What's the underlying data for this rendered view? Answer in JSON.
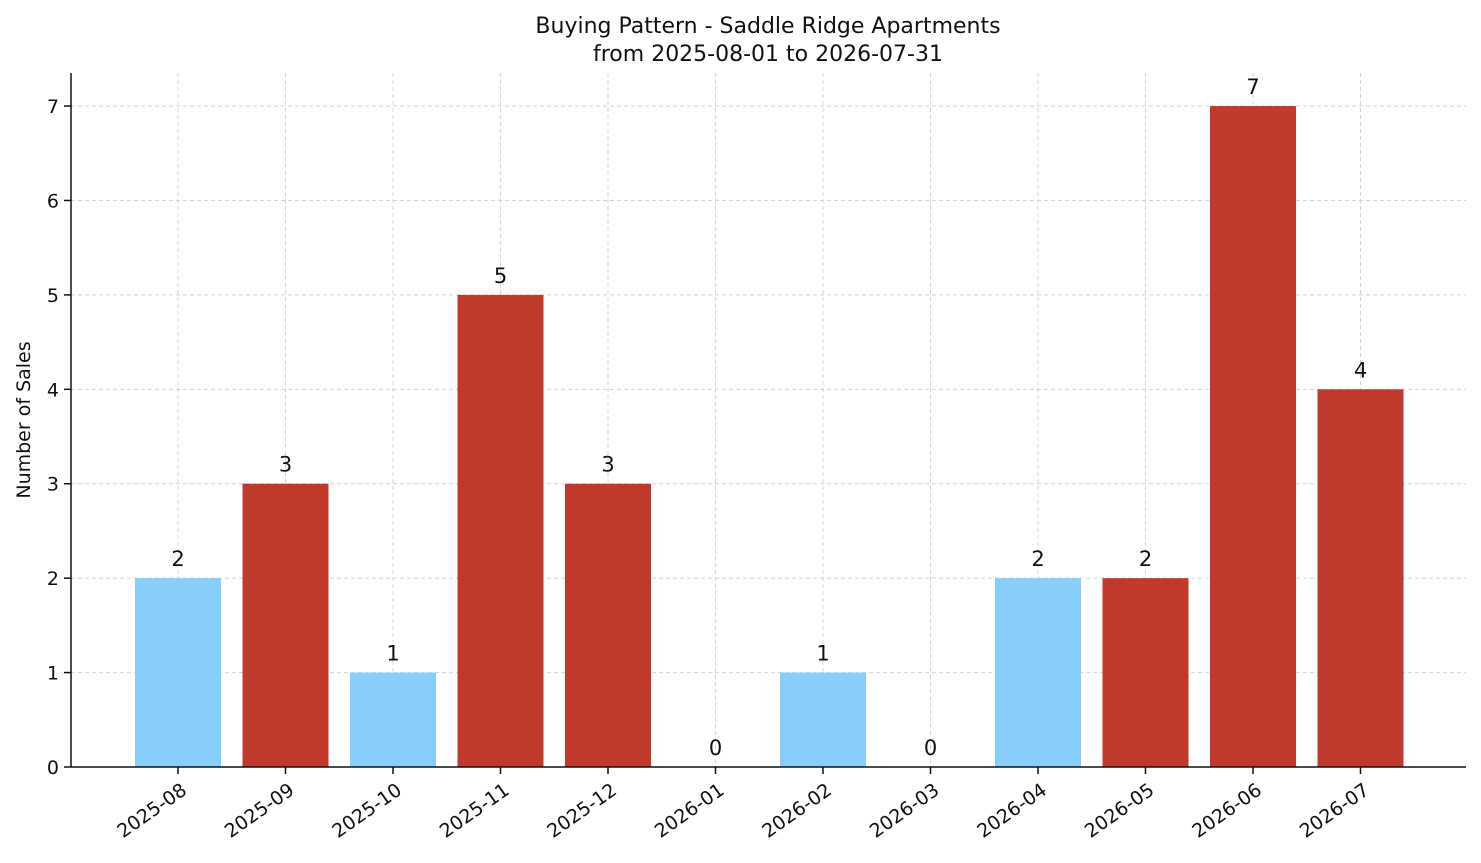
{
  "chart_data": {
    "type": "bar",
    "title": "Buying Pattern - Saddle Ridge Apartments",
    "subtitle": "from 2025-08-01 to 2026-07-31",
    "xlabel": "",
    "ylabel": "Number of Sales",
    "ylim": [
      0,
      7.35
    ],
    "yticks": [
      "0",
      "1",
      "2",
      "3",
      "4",
      "5",
      "6",
      "7"
    ],
    "grid": true,
    "categories": [
      "2025-08",
      "2025-09",
      "2025-10",
      "2025-11",
      "2025-12",
      "2026-01",
      "2026-02",
      "2026-03",
      "2026-04",
      "2026-05",
      "2026-06",
      "2026-07"
    ],
    "values": [
      2,
      3,
      1,
      5,
      3,
      0,
      1,
      0,
      2,
      2,
      7,
      4
    ],
    "data_labels": [
      "2",
      "3",
      "1",
      "5",
      "3",
      "0",
      "1",
      "0",
      "2",
      "2",
      "7",
      "4"
    ],
    "bar_colors": [
      "#87cefa",
      "#c0392b",
      "#87cefa",
      "#c0392b",
      "#c0392b",
      "#c0392b",
      "#87cefa",
      "#c0392b",
      "#87cefa",
      "#c0392b",
      "#c0392b",
      "#c0392b"
    ],
    "colors": {
      "light": "#87cefa",
      "dark": "#c0392b"
    }
  }
}
